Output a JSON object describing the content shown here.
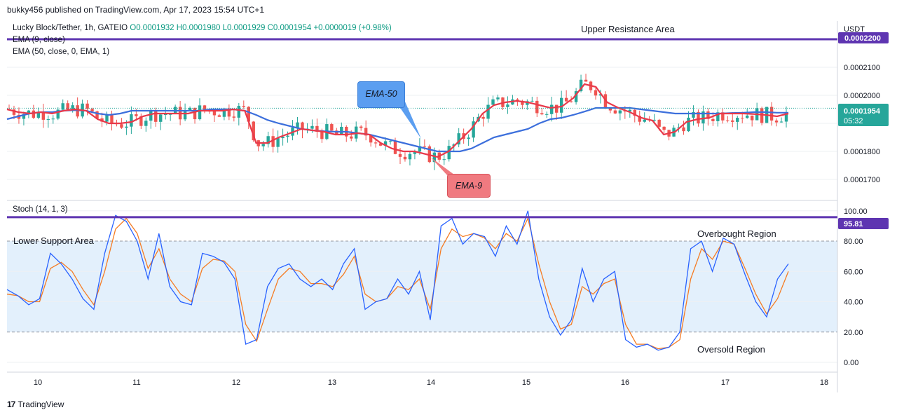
{
  "header": {
    "published": "bukky456 published on TradingView.com, Apr 17, 2023 15:54 UTC+1"
  },
  "legend": {
    "symbol": "Lucky Block/Tether, 1h, GATEIO",
    "ohlc": "O0.0001932 H0.0001980 L0.0001929 C0.0001954 +0.0000019 (+0.98%)",
    "ema9": "EMA (9, close)",
    "ema50": "EMA (50, close, 0, EMA, 1)",
    "stoch": "Stoch (14, 1, 3)"
  },
  "annotations": {
    "upper_resistance": "Upper Resistance Area",
    "lower_support": "Lower Support Area",
    "overbought": "Overbought Region",
    "oversold": "Oversold Region",
    "ema50_callout": "EMA-50",
    "ema9_callout": "EMA-9"
  },
  "price_axis": {
    "currency": "USDT",
    "resistance_label": "0.0002200",
    "last_price": "0.0001954",
    "countdown": "05:32"
  },
  "stoch_axis": {
    "line_label": "95.81"
  },
  "footer": {
    "brand": "TradingView"
  },
  "colors": {
    "bull": "#26a69a",
    "bear": "#ef5350",
    "ema9": "#e8394a",
    "ema50": "#3c6fdc",
    "stoch_k": "#2962ff",
    "stoch_d": "#f57c24",
    "resistance_line": "#5e35b1",
    "stoch_band": "#e3f0fc",
    "ema50_callout_bg": "#5b9ef0",
    "ema9_callout_bg": "#f07a80"
  },
  "chart_data": [
    {
      "type": "candlestick",
      "title": "Lucky Block/Tether, 1h, GATEIO",
      "xlabel": "",
      "ylabel": "",
      "x_ticks": [
        "10",
        "11",
        "12",
        "13",
        "14",
        "15",
        "16",
        "17",
        "18"
      ],
      "y_ticks": [
        "0.0001700",
        "0.0001800",
        "0.0001900",
        "0.0002000",
        "0.0002100"
      ],
      "ylim": [
        0.0001625,
        0.0002265
      ],
      "resistance_level": 0.00022,
      "series": [
        {
          "name": "EMA (9, close)",
          "values": [
            0.000195,
            0.000194,
            0.0001935,
            0.000194,
            0.0001935,
            0.0001945,
            0.000195,
            0.0001945,
            0.0001915,
            0.00019,
            0.00019,
            0.0001905,
            0.0001925,
            0.0001935,
            0.0001935,
            0.0001935,
            0.0001935,
            0.0001945,
            0.0001945,
            0.0001945,
            0.000195,
            0.0001945,
            0.000183,
            0.000183,
            0.000185,
            0.0001865,
            0.000188,
            0.0001875,
            0.000187,
            0.000186,
            0.000186,
            0.0001865,
            0.000186,
            0.000183,
            0.000181,
            0.00018,
            0.00018,
            0.000179,
            0.000178,
            0.00018,
            0.000184,
            0.000188,
            0.0001935,
            0.0001965,
            0.0001975,
            0.000198,
            0.0001975,
            0.0001965,
            0.0001955,
            0.000196,
            0.000199,
            0.000204,
            0.000203,
            0.0001975,
            0.0001955,
            0.000194,
            0.000192,
            0.000191,
            0.000186,
            0.000187,
            0.0001905,
            0.0001915,
            0.000192,
            0.0001935,
            0.0001935,
            0.0001935,
            0.0001933,
            0.000193,
            0.0001925,
            0.0001935
          ]
        },
        {
          "name": "EMA (50, close, 0, EMA, 1)",
          "values": [
            0.0001915,
            0.0001925,
            0.0001935,
            0.000194,
            0.000194,
            0.0001945,
            0.0001947,
            0.0001945,
            0.0001935,
            0.000193,
            0.0001935,
            0.0001945,
            0.0001945,
            0.0001945,
            0.0001945,
            0.0001945,
            0.0001945,
            0.0001945,
            0.000195,
            0.000195,
            0.000195,
            0.0001945,
            0.000193,
            0.0001912,
            0.00019,
            0.000189,
            0.000188,
            0.0001875,
            0.0001872,
            0.000187,
            0.000187,
            0.0001865,
            0.000186,
            0.000185,
            0.000184,
            0.000183,
            0.000182,
            0.000181,
            0.00018,
            0.00018,
            0.00018,
            0.000181,
            0.000183,
            0.000185,
            0.000186,
            0.000187,
            0.000188,
            0.00019,
            0.0001915,
            0.000192,
            0.000193,
            0.0001942,
            0.0001955,
            0.0001955,
            0.0001955,
            0.0001955,
            0.000195,
            0.0001945,
            0.000194,
            0.0001935,
            0.0001935,
            0.0001935,
            0.0001935,
            0.0001935,
            0.0001937,
            0.0001938,
            0.000194,
            0.000194,
            0.0001938,
            0.0001938
          ]
        }
      ]
    },
    {
      "type": "line",
      "title": "Stoch (14, 1, 3)",
      "xlabel": "",
      "ylabel": "",
      "y_ticks": [
        "0.00",
        "20.00",
        "40.00",
        "60.00",
        "80.00",
        "100.00"
      ],
      "ylim": [
        -6,
        105
      ],
      "overbought_level": 80,
      "oversold_level": 20,
      "horizontal_line": 95.81,
      "series": [
        {
          "name": "K",
          "values": [
            48,
            44,
            38,
            42,
            72,
            65,
            55,
            42,
            35,
            72,
            97,
            93,
            80,
            55,
            85,
            50,
            40,
            38,
            72,
            70,
            66,
            55,
            12,
            15,
            50,
            62,
            65,
            55,
            50,
            55,
            48,
            65,
            75,
            35,
            40,
            42,
            55,
            45,
            60,
            28,
            90,
            95,
            78,
            85,
            83,
            70,
            90,
            78,
            100,
            55,
            30,
            18,
            28,
            62,
            40,
            55,
            60,
            15,
            10,
            12,
            8,
            10,
            20,
            75,
            80,
            60,
            82,
            78,
            58,
            40,
            30,
            55,
            65
          ]
        },
        {
          "name": "D",
          "values": [
            45,
            44,
            40,
            40,
            62,
            66,
            60,
            48,
            38,
            60,
            88,
            95,
            85,
            62,
            75,
            55,
            45,
            40,
            62,
            68,
            67,
            60,
            25,
            14,
            35,
            55,
            62,
            60,
            52,
            52,
            50,
            58,
            70,
            45,
            40,
            42,
            50,
            48,
            55,
            35,
            75,
            88,
            83,
            85,
            82,
            75,
            85,
            80,
            95,
            65,
            40,
            22,
            25,
            50,
            45,
            52,
            55,
            25,
            12,
            12,
            9,
            10,
            15,
            55,
            75,
            68,
            80,
            78,
            62,
            45,
            32,
            42,
            60
          ]
        }
      ]
    }
  ]
}
